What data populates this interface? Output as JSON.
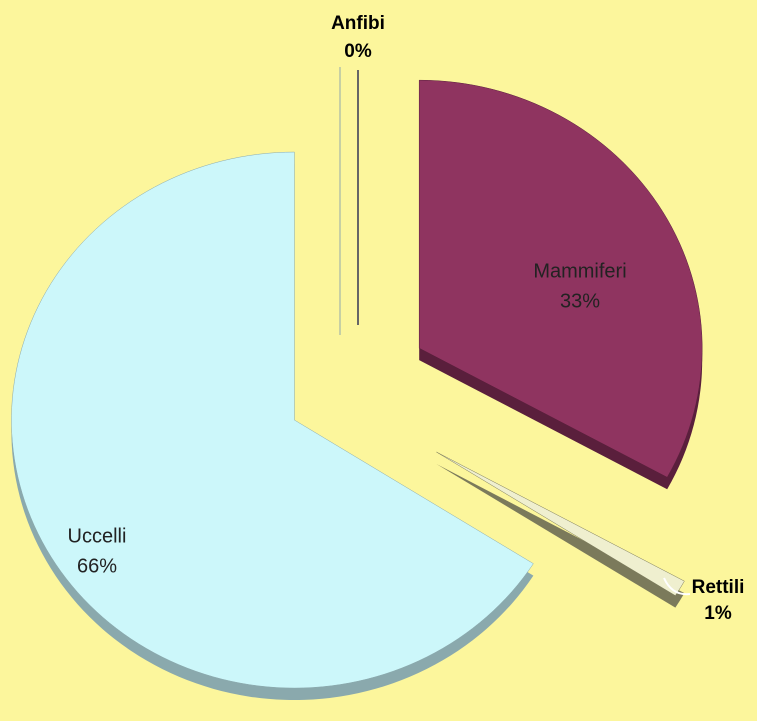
{
  "chart_data": {
    "type": "pie",
    "categories": [
      "Mammiferi",
      "Rettili",
      "Uccelli",
      "Anfibi"
    ],
    "values": [
      33,
      1,
      66,
      0
    ],
    "value_labels": [
      "33%",
      "1%",
      "66%",
      "0%"
    ],
    "colors": [
      "#8f3460",
      "#efefcf",
      "#ccf7fa",
      "#9fc3e6"
    ],
    "side_colors": [
      "#5a1f3c",
      "#7b7a5b",
      "#8aa9ad",
      "#6f8fb0"
    ],
    "background": "#fcf69c"
  }
}
